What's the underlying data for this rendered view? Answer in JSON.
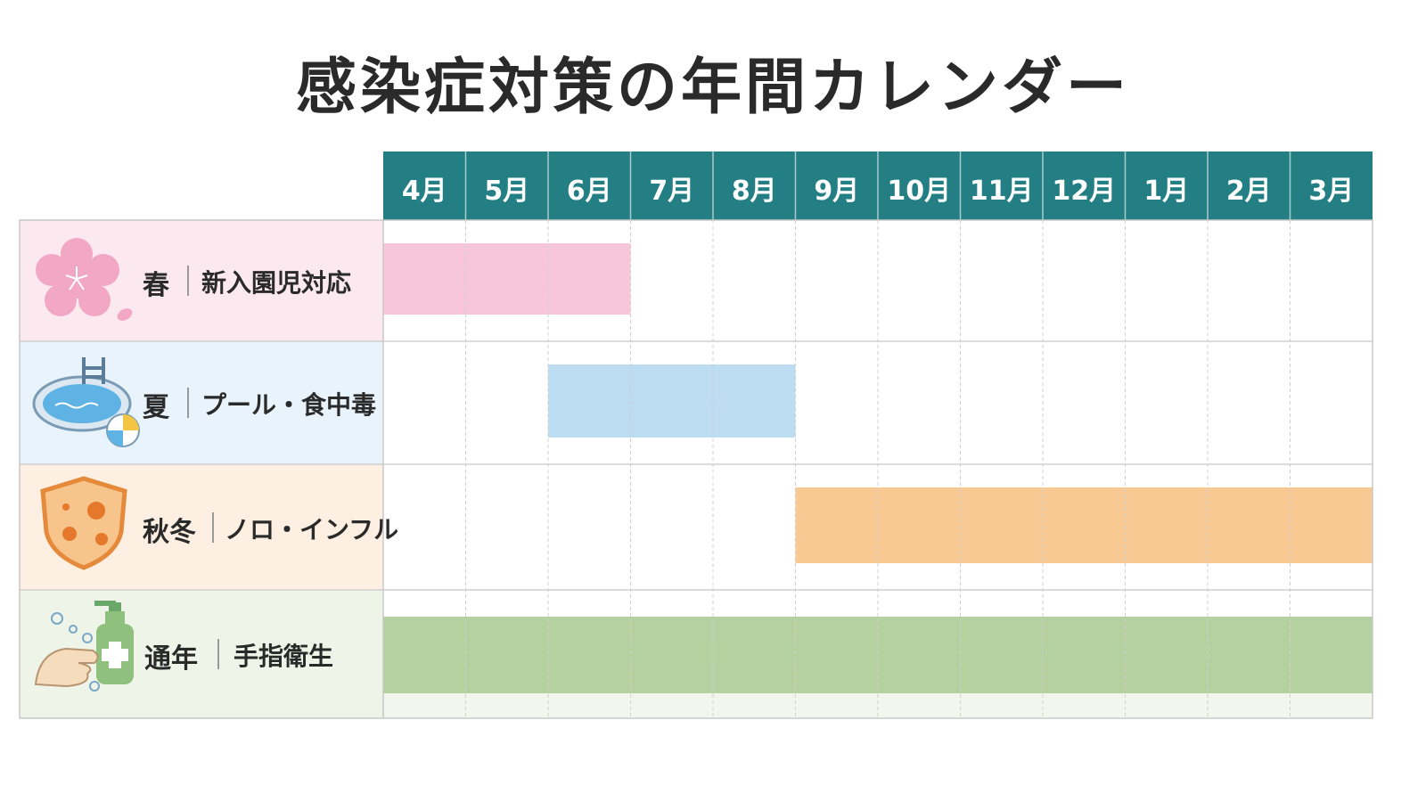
{
  "title": "感染症対策の年間カレンダー",
  "chart_data": {
    "type": "gantt",
    "months": [
      "4月",
      "5月",
      "6月",
      "7月",
      "8月",
      "9月",
      "10月",
      "11月",
      "12月",
      "1月",
      "2月",
      "3月"
    ],
    "rows": [
      {
        "season": "春",
        "task": "新入園児対応",
        "icon": "cherry-blossom-icon",
        "start_month": "4月",
        "end_month": "6月",
        "color": "#f7c6d8",
        "label_bg": "#fbe9ef"
      },
      {
        "season": "夏",
        "task": "プール・食中毒",
        "icon": "pool-icon",
        "start_month": "6月",
        "end_month": "8月",
        "color": "#bcdcf1",
        "label_bg": "#e8f3fb"
      },
      {
        "season": "秋冬",
        "task": "ノロ・インフル",
        "icon": "virus-shield-icon",
        "start_month": "9月",
        "end_month": "3月",
        "color": "#f8c992",
        "label_bg": "#fdf0e3"
      },
      {
        "season": "通年",
        "task": "手指衛生",
        "icon": "hand-soap-icon",
        "start_month": "4月",
        "end_month": "3月",
        "color": "#b5d1a0",
        "label_bg": "#eef4e7"
      }
    ]
  },
  "colors": {
    "header": "#237f84",
    "grid": "#d0d0d0",
    "border": "#c8c8c8",
    "header_text": "#ffffff"
  }
}
